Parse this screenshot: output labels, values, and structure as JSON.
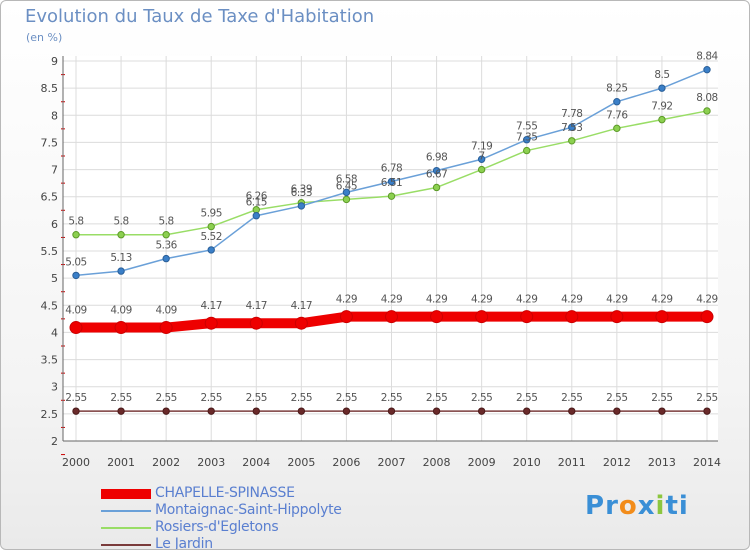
{
  "header": {
    "title": "Evolution du Taux de Taxe d'Habitation",
    "subtitle": "(en %)"
  },
  "chart_data": {
    "type": "line",
    "x": [
      "2000",
      "2001",
      "2002",
      "2003",
      "2004",
      "2005",
      "2006",
      "2007",
      "2008",
      "2009",
      "2010",
      "2011",
      "2012",
      "2013",
      "2014"
    ],
    "ylim": [
      2,
      9
    ],
    "yticks": [
      "2",
      "2.5",
      "3",
      "3.5",
      "4",
      "4.5",
      "5",
      "5.5",
      "6",
      "6.5",
      "7",
      "7.5",
      "8",
      "8.5",
      "9"
    ],
    "grid": true,
    "series": [
      {
        "name": "CHAPELLE-SPINASSE",
        "color": "#ee0000",
        "values": [
          4.09,
          4.09,
          4.09,
          4.17,
          4.17,
          4.17,
          4.29,
          4.29,
          4.29,
          4.29,
          4.29,
          4.29,
          4.29,
          4.29,
          4.29
        ],
        "labels": [
          "4.09",
          "4.09",
          "4.09",
          "4.17",
          "4.17",
          "4.17",
          "4.29",
          "4.29",
          "4.29",
          "4.29",
          "4.29",
          "4.29",
          "4.29",
          "4.29",
          "4.29"
        ]
      },
      {
        "name": "Montaignac-Saint-Hippolyte",
        "color": "#6aa0d8",
        "values": [
          5.05,
          5.13,
          5.36,
          5.52,
          6.15,
          6.33,
          6.58,
          6.78,
          6.98,
          7.19,
          7.55,
          7.78,
          8.25,
          8.5,
          8.84
        ],
        "labels": [
          "5.05",
          "5.13",
          "5.36",
          "5.52",
          "6.15",
          "6.33",
          "6.58",
          "6.78",
          "6.98",
          "7.19",
          "7.55",
          "7.78",
          "8.25",
          "8.5",
          "8.84"
        ]
      },
      {
        "name": "Rosiers-d'Egletons",
        "color": "#99dd66",
        "values": [
          5.8,
          5.8,
          5.8,
          5.95,
          6.26,
          6.39,
          6.45,
          6.51,
          6.67,
          7.0,
          7.35,
          7.53,
          7.76,
          7.92,
          8.08
        ],
        "labels": [
          "5.8",
          "5.8",
          "5.8",
          "5.95",
          "6.26",
          "6.39",
          "6.45",
          "6.51",
          "6.67",
          "7",
          "7.35",
          "7.53",
          "7.76",
          "7.92",
          "8.08"
        ]
      },
      {
        "name": "Le Jardin",
        "color": "#7a3b3b",
        "values": [
          2.55,
          2.55,
          2.55,
          2.55,
          2.55,
          2.55,
          2.55,
          2.55,
          2.55,
          2.55,
          2.55,
          2.55,
          2.55,
          2.55,
          2.55
        ],
        "labels": [
          "2.55",
          "2.55",
          "2.55",
          "2.55",
          "2.55",
          "2.55",
          "2.55",
          "2.55",
          "2.55",
          "2.55",
          "2.55",
          "2.55",
          "2.55",
          "2.55",
          "2.55"
        ]
      }
    ]
  },
  "legend": {
    "items": [
      {
        "label": "CHAPELLE-SPINASSE",
        "color": "#ee0000"
      },
      {
        "label": "Montaignac-Saint-Hippolyte",
        "color": "#6aa0d8"
      },
      {
        "label": "Rosiers-d'Egletons",
        "color": "#99dd66"
      },
      {
        "label": "Le Jardin",
        "color": "#7a3b3b"
      }
    ]
  },
  "logo": {
    "text": "Proxiti",
    "letters": [
      "P",
      "r",
      "o",
      "x",
      "i",
      "t",
      "i"
    ],
    "colors": [
      "#3a8fd6",
      "#3a8fd6",
      "#f28c1a",
      "#3a8fd6",
      "#8cc63f",
      "#3a8fd6",
      "#3a8fd6"
    ]
  }
}
